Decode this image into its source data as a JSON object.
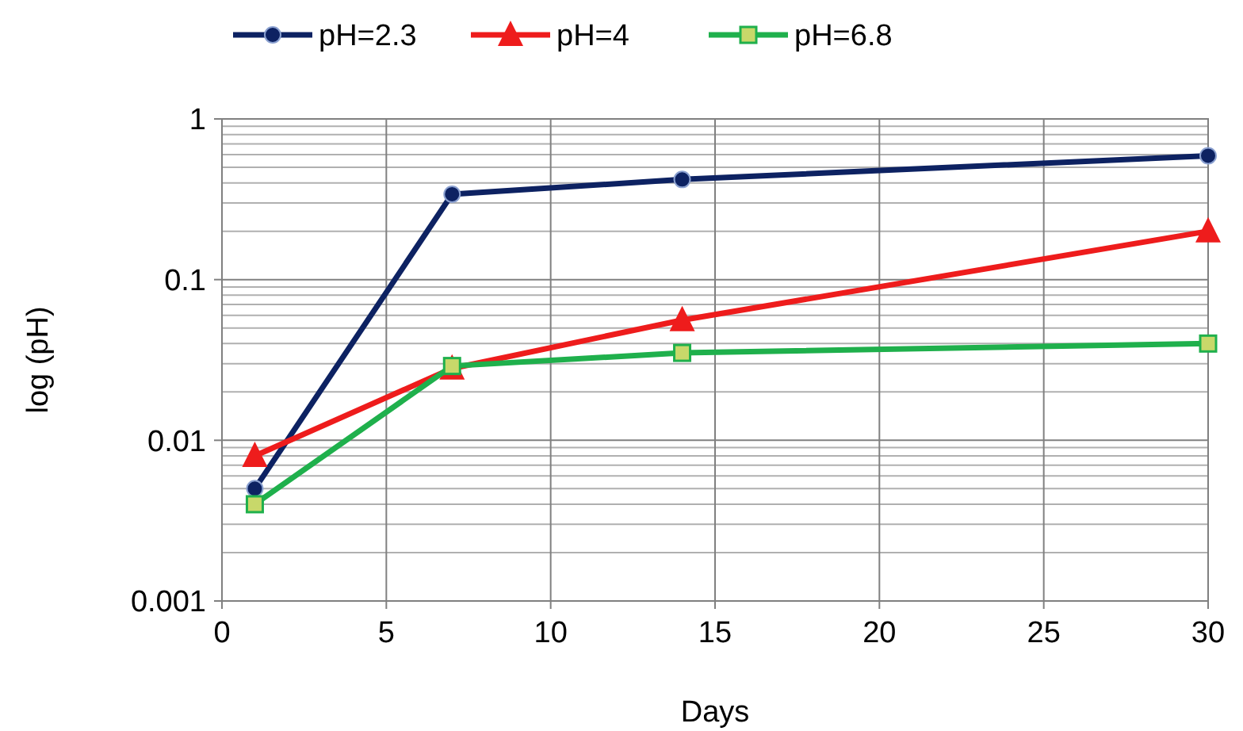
{
  "chart_data": {
    "type": "line",
    "xlabel": "Days",
    "ylabel": "log (pH)",
    "log": "y",
    "grid": true,
    "legend": "top",
    "xlim": [
      0,
      30
    ],
    "xticks": [
      0,
      5,
      10,
      15,
      20,
      25,
      30
    ],
    "ylim": [
      0.001,
      1
    ],
    "yticks": [
      0.001,
      {
        "value": 0.002,
        "label": null
      },
      {
        "value": 0.003,
        "label": null
      },
      {
        "value": 0.004,
        "label": null
      },
      {
        "value": 0.005,
        "label": null
      },
      {
        "value": 0.006,
        "label": null
      },
      {
        "value": 0.007,
        "label": null
      },
      {
        "value": 0.008,
        "label": null
      },
      {
        "value": 0.009,
        "label": null
      },
      0.01,
      {
        "value": 0.02,
        "label": null
      },
      {
        "value": 0.03,
        "label": null
      },
      {
        "value": 0.04,
        "label": null
      },
      {
        "value": 0.05,
        "label": null
      },
      {
        "value": 0.06,
        "label": null
      },
      {
        "value": 0.07,
        "label": null
      },
      {
        "value": 0.08,
        "label": null
      },
      {
        "value": 0.09,
        "label": null
      },
      0.1,
      {
        "value": 0.2,
        "label": null
      },
      {
        "value": 0.3,
        "label": null
      },
      {
        "value": 0.4,
        "label": null
      },
      {
        "value": 0.5,
        "label": null
      },
      {
        "value": 0.6,
        "label": null
      },
      {
        "value": 0.7,
        "label": null
      },
      {
        "value": 0.8,
        "label": null
      },
      {
        "value": 0.9,
        "label": null
      },
      1
    ],
    "x": [
      1,
      7,
      14,
      30
    ],
    "series": [
      {
        "name": "pH=2.3",
        "color": "#0d2262",
        "marker": "circle",
        "values": [
          0.005,
          0.34,
          0.42,
          0.59
        ]
      },
      {
        "name": "pH=4",
        "color": "#ee1c1c",
        "marker": "triangle",
        "values": [
          0.008,
          0.028,
          0.056,
          0.2
        ]
      },
      {
        "name": "pH=6.8",
        "color": "#1fb04c",
        "marker": "square",
        "values": [
          0.004,
          0.029,
          0.035,
          0.04
        ]
      }
    ]
  }
}
